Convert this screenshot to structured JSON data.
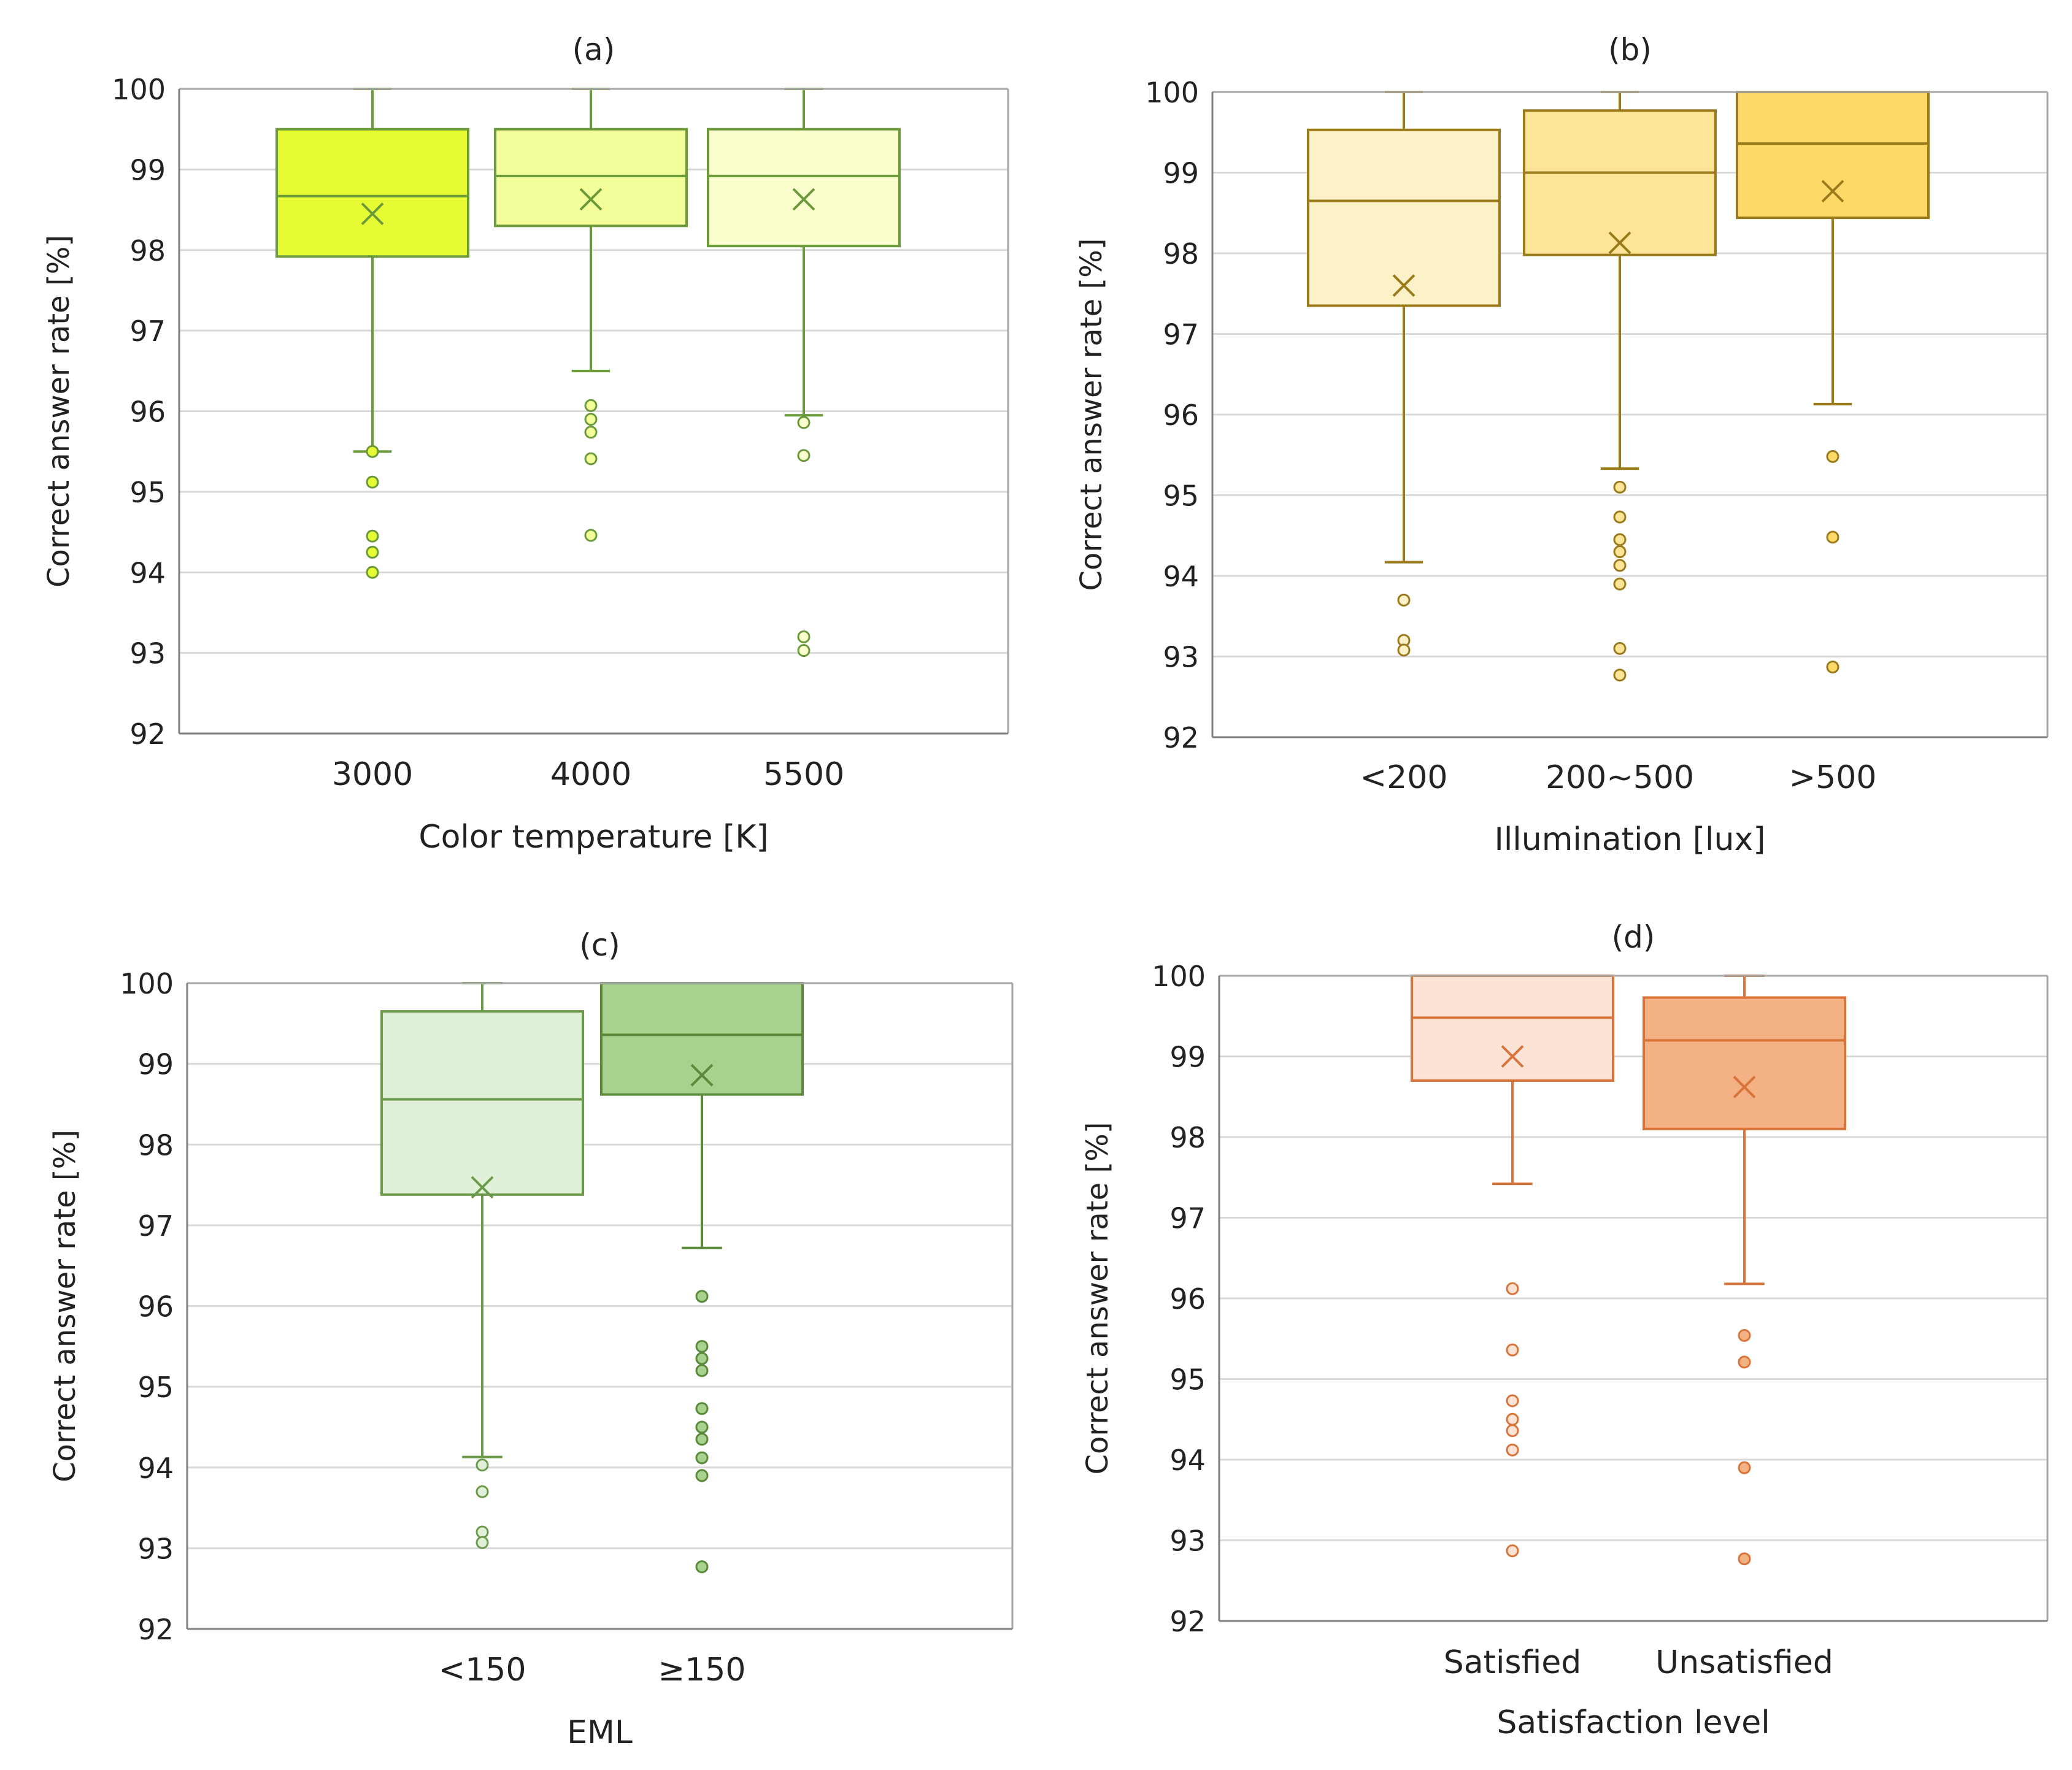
{
  "chart_data": [
    {
      "type": "box",
      "title": "(a)",
      "xlabel": "Color temperature [K]",
      "ylabel": "Correct answer rate [%]",
      "ylim": [
        92,
        100
      ],
      "yticks": [
        "92",
        "93",
        "94",
        "95",
        "96",
        "97",
        "98",
        "99",
        "100"
      ],
      "grid": true,
      "categories": [
        "3000",
        "4000",
        "5500"
      ],
      "boxes": [
        {
          "name": "3000",
          "min": 95.5,
          "q1": 97.92,
          "median": 98.67,
          "q3": 99.5,
          "max": 100,
          "mean": 98.45,
          "outliers": [
            95.5,
            95.12,
            94.45,
            94.25,
            94.0
          ],
          "fill": "#e5fb33",
          "stroke": "#6a9a3a"
        },
        {
          "name": "4000",
          "min": 96.5,
          "q1": 98.3,
          "median": 98.92,
          "q3": 99.5,
          "max": 100,
          "mean": 98.63,
          "outliers": [
            96.07,
            95.9,
            95.74,
            95.41,
            94.46
          ],
          "fill": "#f2fd9a",
          "stroke": "#6a9a3a"
        },
        {
          "name": "5500",
          "min": 95.95,
          "q1": 98.05,
          "median": 98.92,
          "q3": 99.5,
          "max": 100,
          "mean": 98.63,
          "outliers": [
            95.86,
            95.45,
            93.2,
            93.03
          ],
          "fill": "#fbffcd",
          "stroke": "#6a9a3a"
        }
      ]
    },
    {
      "type": "box",
      "title": "(b)",
      "xlabel": "Illumination [lux]",
      "ylabel": "Correct answer rate [%]",
      "ylim": [
        92,
        100
      ],
      "yticks": [
        "92",
        "93",
        "94",
        "95",
        "96",
        "97",
        "98",
        "99",
        "100"
      ],
      "grid": true,
      "categories": [
        "<200",
        "200~500",
        ">500"
      ],
      "boxes": [
        {
          "name": "<200",
          "min": 94.17,
          "q1": 97.35,
          "median": 98.65,
          "q3": 99.53,
          "max": 100,
          "mean": 97.6,
          "outliers": [
            93.7,
            93.2,
            93.08
          ],
          "fill": "#fdf1c7",
          "stroke": "#9a7a1a"
        },
        {
          "name": "200~500",
          "min": 95.33,
          "q1": 97.98,
          "median": 99.0,
          "q3": 99.77,
          "max": 100,
          "mean": 98.13,
          "outliers": [
            95.1,
            94.73,
            94.45,
            94.3,
            94.13,
            93.9,
            93.1,
            92.77
          ],
          "fill": "#fde496",
          "stroke": "#9a7a1a"
        },
        {
          "name": ">500",
          "min": 96.13,
          "q1": 98.44,
          "median": 99.36,
          "q3": 100,
          "max": 100,
          "mean": 98.77,
          "outliers": [
            95.48,
            94.48,
            92.87
          ],
          "fill": "#fdd968",
          "stroke": "#9a7a1a"
        }
      ]
    },
    {
      "type": "box",
      "title": "(c)",
      "xlabel": "EML",
      "ylabel": "Correct answer rate [%]",
      "ylim": [
        92,
        100
      ],
      "yticks": [
        "92",
        "93",
        "94",
        "95",
        "96",
        "97",
        "98",
        "99",
        "100"
      ],
      "grid": true,
      "categories": [
        "<150",
        "≥150"
      ],
      "boxes": [
        {
          "name": "<150",
          "min": 94.13,
          "q1": 97.38,
          "median": 98.56,
          "q3": 99.65,
          "max": 100,
          "mean": 97.47,
          "outliers": [
            94.03,
            93.7,
            93.2,
            93.07
          ],
          "fill": "#e1f0d8",
          "stroke": "#6a9a4a"
        },
        {
          "name": "≥150",
          "min": 96.72,
          "q1": 98.62,
          "median": 99.36,
          "q3": 100,
          "max": 100,
          "mean": 98.86,
          "outliers": [
            96.12,
            95.5,
            95.35,
            95.2,
            94.73,
            94.5,
            94.35,
            94.12,
            93.9,
            92.77
          ],
          "fill": "#a9d18e",
          "stroke": "#5a8a3a"
        }
      ]
    },
    {
      "type": "box",
      "title": "(d)",
      "xlabel": "Satisfaction level",
      "ylabel": "Correct answer rate [%]",
      "ylim": [
        92,
        100
      ],
      "yticks": [
        "92",
        "93",
        "94",
        "95",
        "96",
        "97",
        "98",
        "99",
        "100"
      ],
      "grid": true,
      "categories": [
        "Satisfied",
        "Unsatisfied"
      ],
      "boxes": [
        {
          "name": "Satisfied",
          "min": 97.42,
          "q1": 98.7,
          "median": 99.48,
          "q3": 100,
          "max": 100,
          "mean": 99.0,
          "outliers": [
            96.12,
            95.36,
            94.73,
            94.5,
            94.36,
            94.12,
            92.87
          ],
          "fill": "#fce3d6",
          "stroke": "#d8743a"
        },
        {
          "name": "Unsatisfied",
          "min": 96.18,
          "q1": 98.1,
          "median": 99.2,
          "q3": 99.73,
          "max": 100,
          "mean": 98.62,
          "outliers": [
            95.54,
            95.21,
            93.9,
            92.77
          ],
          "fill": "#f4b183",
          "stroke": "#d8743a"
        }
      ]
    }
  ]
}
